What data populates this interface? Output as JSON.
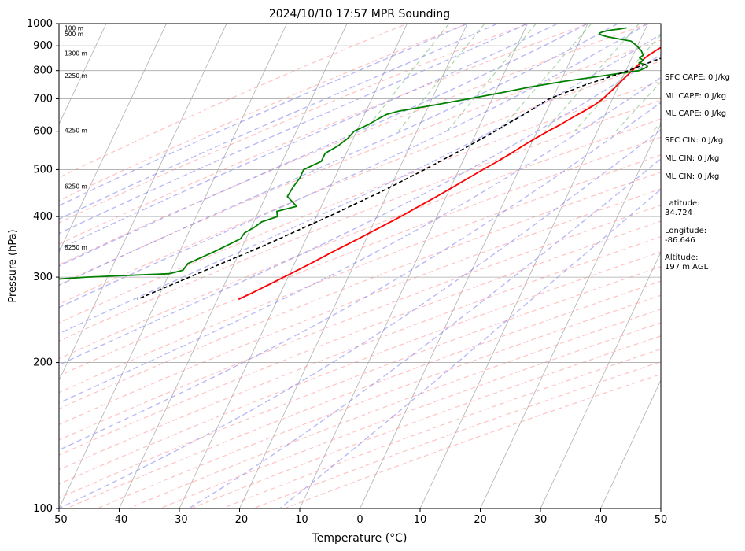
{
  "chart_data": {
    "type": "line",
    "title": "2024/10/10 17:57 MPR Sounding",
    "xlabel": "Temperature (°C)",
    "ylabel": "Pressure (hPa)",
    "xlim": [
      -50,
      50
    ],
    "ylim": [
      1000,
      100
    ],
    "y_scale": "log",
    "skew": "skew-T",
    "grid": true,
    "x_ticks": [
      -50,
      -40,
      -30,
      -20,
      -10,
      0,
      10,
      20,
      30,
      40,
      50
    ],
    "y_ticks": [
      1000,
      900,
      800,
      700,
      600,
      500,
      400,
      300,
      200,
      100
    ],
    "height_labels": [
      {
        "pressure": 980,
        "text": "100 m"
      },
      {
        "pressure": 952,
        "text": "500 m"
      },
      {
        "pressure": 870,
        "text": "1300 m"
      },
      {
        "pressure": 782,
        "text": "2250 m"
      },
      {
        "pressure": 603,
        "text": "4250 m"
      },
      {
        "pressure": 462,
        "text": "6250 m"
      },
      {
        "pressure": 346,
        "text": "8250 m"
      }
    ],
    "series": [
      {
        "color": "#ff0000",
        "pressure": [
          1000,
          990,
          980,
          970,
          960,
          950,
          940,
          920,
          900,
          880,
          860,
          850,
          830,
          810,
          790,
          770,
          750,
          730,
          700,
          680,
          660,
          640,
          620,
          600,
          580,
          560,
          540,
          520,
          500,
          480,
          460,
          440,
          420,
          400,
          380,
          360,
          340,
          320,
          300,
          280,
          270
        ],
        "temperature": [
          27.2,
          24.5,
          21.8,
          20.3,
          19.2,
          18.0,
          17.2,
          15.6,
          14.4,
          13.4,
          12.6,
          12.2,
          11.8,
          11.3,
          10.8,
          10.3,
          9.8,
          9.3,
          8.4,
          7.5,
          6.2,
          4.8,
          3.4,
          1.8,
          0.3,
          -1.2,
          -2.6,
          -4.2,
          -6.0,
          -7.8,
          -9.6,
          -11.6,
          -13.8,
          -16.0,
          -18.6,
          -21.3,
          -24.3,
          -27.3,
          -30.7,
          -34.4,
          -36.5
        ]
      },
      {
        "color": "#008000",
        "pressure": [
          980,
          975,
          970,
          965,
          960,
          955,
          950,
          945,
          940,
          930,
          920,
          900,
          880,
          860,
          850,
          840,
          830,
          825,
          820,
          815,
          810,
          805,
          800,
          780,
          760,
          740,
          720,
          700,
          680,
          660,
          650,
          640,
          620,
          600,
          580,
          560,
          540,
          520,
          500,
          480,
          460,
          440,
          420,
          410,
          400,
          390,
          380,
          370,
          360,
          340,
          320,
          310,
          305,
          300,
          295
        ],
        "dewpoint": [
          6.8,
          5.8,
          4.5,
          3.6,
          3.0,
          2.7,
          2.9,
          3.4,
          4.3,
          6.3,
          8.6,
          9.9,
          11.0,
          11.7,
          11.3,
          12.1,
          11.6,
          12.5,
          13.1,
          13.3,
          13.0,
          12.6,
          12.2,
          6.4,
          0.5,
          -4.7,
          -9.0,
          -13.8,
          -19.0,
          -24.6,
          -26.3,
          -27.1,
          -28.5,
          -30.4,
          -30.9,
          -31.9,
          -33.5,
          -33.5,
          -35.8,
          -35.8,
          -36.2,
          -36.4,
          -34.1,
          -37.0,
          -36.5,
          -38.7,
          -39.5,
          -40.7,
          -40.9,
          -44.0,
          -47.7,
          -48.0,
          -50.0,
          -63.5,
          -72.0
        ]
      },
      {
        "color": "#000000",
        "dash": true,
        "pressure": [
          1000,
          950,
          900,
          850,
          800,
          770,
          750,
          720,
          700,
          650,
          600,
          550,
          500,
          450,
          400,
          350,
          300,
          270
        ],
        "temperature": [
          27.2,
          23.2,
          19.2,
          15.0,
          10.4,
          7.1,
          4.6,
          1.6,
          -0.5,
          -3.5,
          -7.0,
          -11.0,
          -15.7,
          -21.2,
          -28.0,
          -36.2,
          -46.4,
          -53.3
        ]
      }
    ],
    "annotations": [
      "SFC CAPE: 0 J/kg",
      "ML CAPE: 0 J/kg",
      "ML CAPE: 0 J/kg",
      "SFC CIN: 0 J/kg",
      "ML CIN: 0 J/kg",
      "ML CIN: 0 J/kg",
      "Latitude:\n34.724",
      "Longitude:\n-86.646",
      "Altitude:\n197 m AGL"
    ]
  }
}
